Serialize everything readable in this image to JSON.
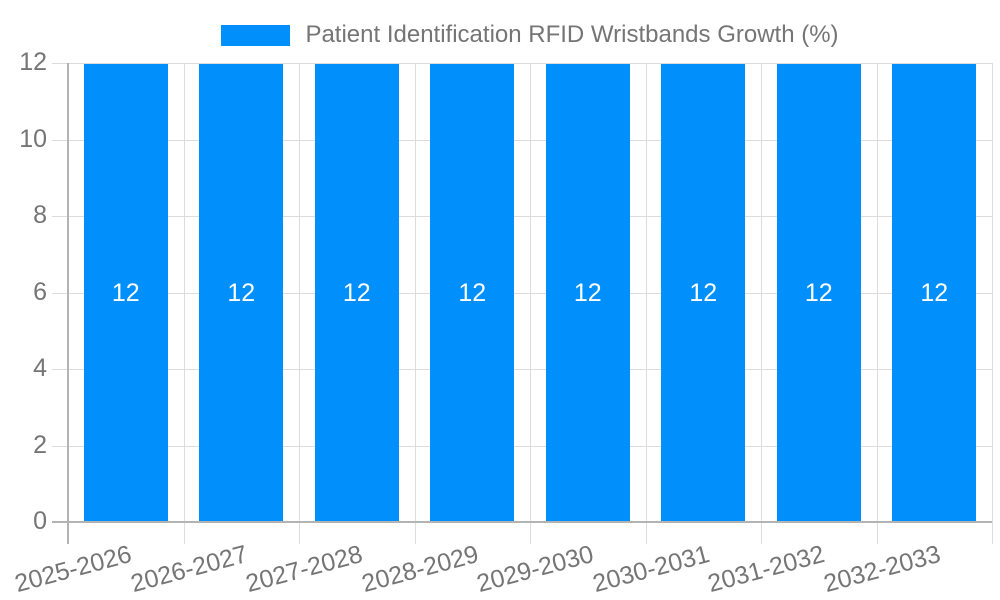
{
  "chart_data": {
    "type": "bar",
    "title": "Patient Identification RFID Wristbands Growth (%)",
    "legend": {
      "position": "top",
      "label": "Patient Identification RFID Wristbands Growth (%)"
    },
    "categories": [
      "2025-2026",
      "2026-2027",
      "2027-2028",
      "2028-2029",
      "2029-2030",
      "2030-2031",
      "2031-2032",
      "2032-2033"
    ],
    "series": [
      {
        "name": "Patient Identification RFID Wristbands Growth (%)",
        "values": [
          12,
          12,
          12,
          12,
          12,
          12,
          12,
          12
        ]
      }
    ],
    "bar_value_labels": [
      "12",
      "12",
      "12",
      "12",
      "12",
      "12",
      "12",
      "12"
    ],
    "xlabel": "",
    "ylabel": "",
    "ylim": [
      0,
      12
    ],
    "yticks": [
      0,
      2,
      4,
      6,
      8,
      10,
      12
    ],
    "grid": true,
    "x_label_rotation_deg": -15,
    "colors": {
      "bar": "#008FFB",
      "bar_label": "#FFFFFF",
      "grid": "#DCDCDC",
      "axis": "#B3B3B3",
      "tick_label": "#757575",
      "legend_label": "#757575",
      "background": "#FFFFFF"
    }
  }
}
